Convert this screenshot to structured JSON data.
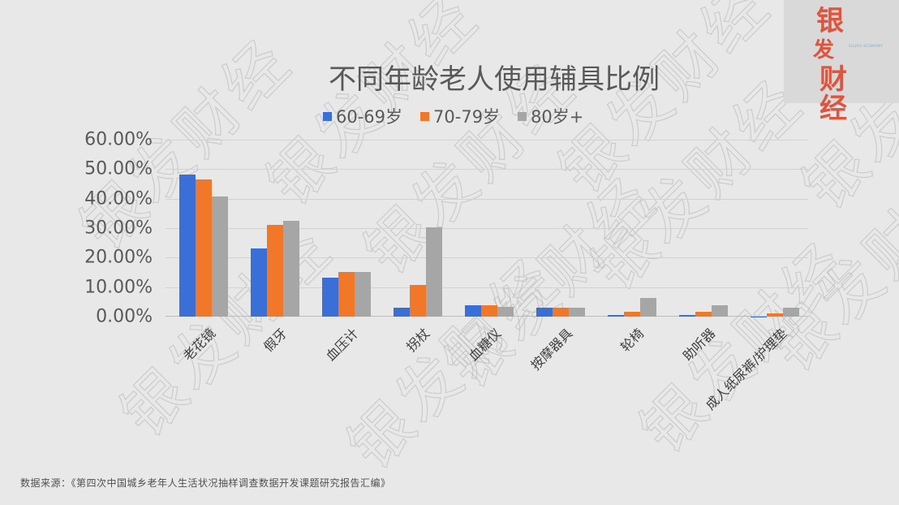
{
  "logo": {
    "chars": [
      "银",
      "发",
      "财经"
    ],
    "subtext": "SILVER ECONOMY"
  },
  "watermark": {
    "text": "银发财经"
  },
  "colors": {
    "series_60_69": "#3a6fd8",
    "series_70_79": "#f07828",
    "series_80_plus": "#a6a6a6",
    "background": "#e8e8e8",
    "logo_red": "#e0533d"
  },
  "chart_data": {
    "type": "bar",
    "title": "不同年龄老人使用辅具比例",
    "xlabel": "",
    "ylabel": "",
    "ylim": [
      0,
      0.6
    ],
    "yticks": [
      "0.00%",
      "10.00%",
      "20.00%",
      "30.00%",
      "40.00%",
      "50.00%",
      "60.00%"
    ],
    "grid": true,
    "legend_position": "top",
    "categories": [
      "老花镜",
      "假牙",
      "血压计",
      "拐杖",
      "血糖仪",
      "按摩器具",
      "轮椅",
      "助听器",
      "成人纸尿裤/护理垫"
    ],
    "series": [
      {
        "name": "60-69岁",
        "color": "#3a6fd8",
        "values": [
          48.2,
          23.2,
          13.2,
          3.1,
          3.8,
          3.0,
          0.5,
          0.5,
          0.1
        ]
      },
      {
        "name": "70-79岁",
        "color": "#f07828",
        "values": [
          46.6,
          31.2,
          15.2,
          10.7,
          3.8,
          3.1,
          1.6,
          1.6,
          1.0
        ]
      },
      {
        "name": "80岁+",
        "color": "#a6a6a6",
        "values": [
          40.8,
          32.5,
          15.2,
          30.3,
          3.4,
          3.0,
          6.2,
          3.8,
          3.0
        ]
      }
    ],
    "value_unit": "%"
  },
  "source": {
    "text": "数据来源：《第四次中国城乡老年人生活状况抽样调查数据开发课题研究报告汇编》"
  }
}
